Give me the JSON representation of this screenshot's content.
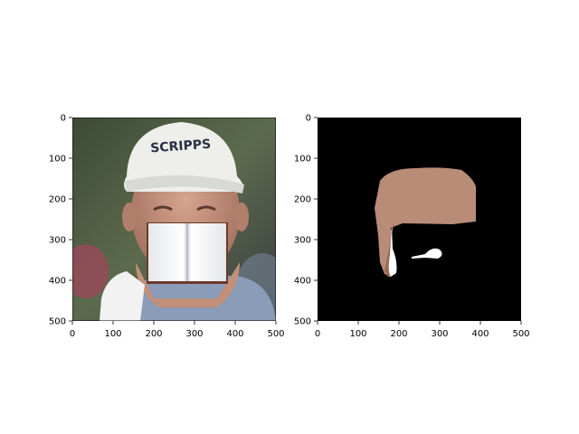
{
  "figure": {
    "panels": [
      {
        "name": "photo-panel",
        "description_kind": "photo",
        "xticks": [
          0,
          100,
          200,
          300,
          400,
          500
        ],
        "yticks": [
          0,
          100,
          200,
          300,
          400,
          500
        ],
        "xlim": [
          0,
          500
        ],
        "ylim": [
          0,
          500
        ],
        "cap_text": "SCRIPPS"
      },
      {
        "name": "mask-panel",
        "description_kind": "mask",
        "xticks": [
          0,
          100,
          200,
          300,
          400,
          500
        ],
        "yticks": [
          0,
          100,
          200,
          300,
          400,
          500
        ],
        "xlim": [
          0,
          500
        ],
        "ylim": [
          0,
          500
        ]
      }
    ],
    "colors": {
      "background": "#ffffff",
      "mask_black": "#000000",
      "skin": "#b98c78",
      "cap": "#eeeeea",
      "book_page": "#f4f6f8",
      "book_cover": "#6b3b2a"
    }
  }
}
